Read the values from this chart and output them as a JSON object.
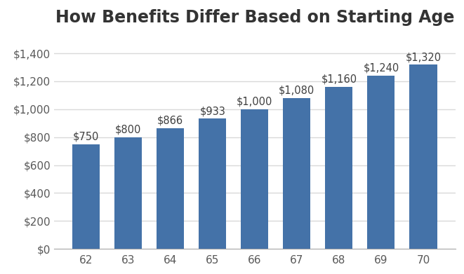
{
  "title": "How Benefits Differ Based on Starting Age",
  "categories": [
    62,
    63,
    64,
    65,
    66,
    67,
    68,
    69,
    70
  ],
  "values": [
    750,
    800,
    866,
    933,
    1000,
    1080,
    1160,
    1240,
    1320
  ],
  "labels": [
    "$750",
    "$800",
    "$866",
    "$933",
    "$1,000",
    "$1,080",
    "$1,160",
    "$1,240",
    "$1,320"
  ],
  "bar_color": "#4472a8",
  "background_color": "#ffffff",
  "grid_color": "#d9d9d9",
  "ylim": [
    0,
    1540
  ],
  "yticks": [
    0,
    200,
    400,
    600,
    800,
    1000,
    1200,
    1400
  ],
  "ytick_labels": [
    "$0",
    "$200",
    "$400",
    "$600",
    "$800",
    "$1,000",
    "$1,200",
    "$1,400"
  ],
  "title_fontsize": 17,
  "tick_fontsize": 11,
  "label_fontsize": 10.5
}
